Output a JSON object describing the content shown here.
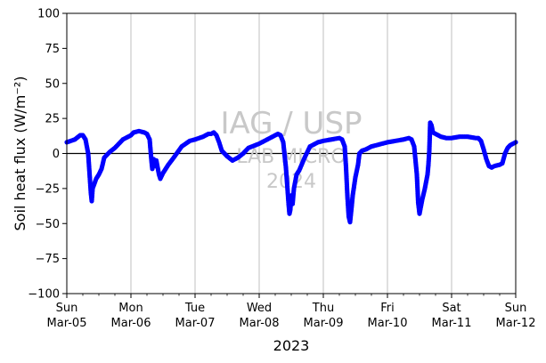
{
  "chart_data": {
    "type": "scatter",
    "ylabel": "Soil heat flux (W/m⁻²)",
    "xlabel": "2023",
    "ylim": [
      -100,
      100
    ],
    "xlim": [
      "2023-03-05",
      "2023-03-12"
    ],
    "y_ticks": [
      100,
      75,
      50,
      25,
      0,
      -25,
      -50,
      -75,
      -100
    ],
    "y_tick_labels": [
      "100",
      "75",
      "50",
      "25",
      "0",
      "−25",
      "−50",
      "−75",
      "−100"
    ],
    "x_ticks": [
      {
        "day": "Sun",
        "date": "Mar-05"
      },
      {
        "day": "Mon",
        "date": "Mar-06"
      },
      {
        "day": "Tue",
        "date": "Mar-07"
      },
      {
        "day": "Wed",
        "date": "Mar-08"
      },
      {
        "day": "Thu",
        "date": "Mar-09"
      },
      {
        "day": "Fri",
        "date": "Mar-10"
      },
      {
        "day": "Sat",
        "date": "Mar-11"
      },
      {
        "day": "Sun",
        "date": "Mar-12"
      }
    ],
    "grid": "vertical at major x ticks",
    "reference_line_y": 0,
    "series": [
      {
        "color": "#0000ff",
        "marker": "dot",
        "points": [
          [
            "2023-03-05 00:00",
            8
          ],
          [
            "2023-03-05 03:00",
            10
          ],
          [
            "2023-03-05 05:00",
            13
          ],
          [
            "2023-03-05 06:00",
            13
          ],
          [
            "2023-03-05 07:00",
            10
          ],
          [
            "2023-03-05 08:00",
            0
          ],
          [
            "2023-03-05 08:30",
            -14
          ],
          [
            "2023-03-05 09:00",
            -28
          ],
          [
            "2023-03-05 09:20",
            -34
          ],
          [
            "2023-03-05 09:40",
            -25
          ],
          [
            "2023-03-05 11:00",
            -18
          ],
          [
            "2023-03-05 12:00",
            -15
          ],
          [
            "2023-03-05 13:00",
            -11
          ],
          [
            "2023-03-05 14:00",
            -3
          ],
          [
            "2023-03-05 16:00",
            1
          ],
          [
            "2023-03-05 18:00",
            4
          ],
          [
            "2023-03-05 21:00",
            10
          ],
          [
            "2023-03-06 00:00",
            13
          ],
          [
            "2023-03-06 01:00",
            15
          ],
          [
            "2023-03-06 03:00",
            16
          ],
          [
            "2023-03-06 05:00",
            15
          ],
          [
            "2023-03-06 06:00",
            14
          ],
          [
            "2023-03-06 07:00",
            10
          ],
          [
            "2023-03-06 07:40",
            -5
          ],
          [
            "2023-03-06 08:00",
            -11
          ],
          [
            "2023-03-06 08:30",
            -4
          ],
          [
            "2023-03-06 09:00",
            -9
          ],
          [
            "2023-03-06 09:30",
            -5
          ],
          [
            "2023-03-06 10:30",
            -15
          ],
          [
            "2023-03-06 11:00",
            -18
          ],
          [
            "2023-03-06 12:00",
            -14
          ],
          [
            "2023-03-06 13:00",
            -11
          ],
          [
            "2023-03-06 14:00",
            -8
          ],
          [
            "2023-03-06 16:00",
            -3
          ],
          [
            "2023-03-06 19:00",
            5
          ],
          [
            "2023-03-06 22:00",
            9
          ],
          [
            "2023-03-07 00:00",
            10
          ],
          [
            "2023-03-07 03:00",
            12
          ],
          [
            "2023-03-07 05:00",
            14
          ],
          [
            "2023-03-07 06:00",
            14
          ],
          [
            "2023-03-07 07:00",
            15
          ],
          [
            "2023-03-07 08:00",
            13
          ],
          [
            "2023-03-07 09:00",
            8
          ],
          [
            "2023-03-07 10:00",
            2
          ],
          [
            "2023-03-07 12:00",
            -2
          ],
          [
            "2023-03-07 14:00",
            -5
          ],
          [
            "2023-03-07 16:00",
            -3
          ],
          [
            "2023-03-07 18:00",
            0
          ],
          [
            "2023-03-07 20:00",
            4
          ],
          [
            "2023-03-08 00:00",
            7
          ],
          [
            "2023-03-08 02:00",
            9
          ],
          [
            "2023-03-08 05:00",
            12
          ],
          [
            "2023-03-08 07:00",
            14
          ],
          [
            "2023-03-08 08:00",
            13
          ],
          [
            "2023-03-08 09:00",
            8
          ],
          [
            "2023-03-08 10:00",
            -10
          ],
          [
            "2023-03-08 11:00",
            -36
          ],
          [
            "2023-03-08 11:20",
            -43
          ],
          [
            "2023-03-08 11:40",
            -40
          ],
          [
            "2023-03-08 12:00",
            -30
          ],
          [
            "2023-03-08 12:30",
            -36
          ],
          [
            "2023-03-08 13:00",
            -25
          ],
          [
            "2023-03-08 14:00",
            -15
          ],
          [
            "2023-03-08 15:00",
            -12
          ],
          [
            "2023-03-08 17:00",
            -3
          ],
          [
            "2023-03-08 19:00",
            5
          ],
          [
            "2023-03-08 22:00",
            8
          ],
          [
            "2023-03-09 00:00",
            9
          ],
          [
            "2023-03-09 03:00",
            10
          ],
          [
            "2023-03-09 06:00",
            11
          ],
          [
            "2023-03-09 07:00",
            10
          ],
          [
            "2023-03-09 08:00",
            5
          ],
          [
            "2023-03-09 08:30",
            -10
          ],
          [
            "2023-03-09 09:00",
            -30
          ],
          [
            "2023-03-09 09:30",
            -45
          ],
          [
            "2023-03-09 10:00",
            -49
          ],
          [
            "2023-03-09 10:30",
            -40
          ],
          [
            "2023-03-09 11:00",
            -30
          ],
          [
            "2023-03-09 12:00",
            -17
          ],
          [
            "2023-03-09 13:00",
            -8
          ],
          [
            "2023-03-09 13:30",
            0
          ],
          [
            "2023-03-09 14:30",
            2
          ],
          [
            "2023-03-09 16:00",
            3
          ],
          [
            "2023-03-09 18:00",
            5
          ],
          [
            "2023-03-09 20:00",
            6
          ],
          [
            "2023-03-10 00:00",
            8
          ],
          [
            "2023-03-10 03:00",
            9
          ],
          [
            "2023-03-10 06:00",
            10
          ],
          [
            "2023-03-10 08:00",
            11
          ],
          [
            "2023-03-10 09:00",
            10
          ],
          [
            "2023-03-10 10:00",
            5
          ],
          [
            "2023-03-10 11:00",
            -15
          ],
          [
            "2023-03-10 11:30",
            -35
          ],
          [
            "2023-03-10 12:00",
            -43
          ],
          [
            "2023-03-10 13:00",
            -33
          ],
          [
            "2023-03-10 14:00",
            -25
          ],
          [
            "2023-03-10 15:00",
            -15
          ],
          [
            "2023-03-10 15:20",
            -8
          ],
          [
            "2023-03-10 15:40",
            2
          ],
          [
            "2023-03-10 16:00",
            22
          ],
          [
            "2023-03-10 16:30",
            20
          ],
          [
            "2023-03-10 17:00",
            15
          ],
          [
            "2023-03-10 18:00",
            14
          ],
          [
            "2023-03-10 20:00",
            12
          ],
          [
            "2023-03-10 22:00",
            11
          ],
          [
            "2023-03-11 00:00",
            11
          ],
          [
            "2023-03-11 03:00",
            12
          ],
          [
            "2023-03-11 06:00",
            12
          ],
          [
            "2023-03-11 09:00",
            11
          ],
          [
            "2023-03-11 10:00",
            11
          ],
          [
            "2023-03-11 11:00",
            9
          ],
          [
            "2023-03-11 12:00",
            3
          ],
          [
            "2023-03-11 13:00",
            -4
          ],
          [
            "2023-03-11 14:00",
            -9
          ],
          [
            "2023-03-11 15:00",
            -10
          ],
          [
            "2023-03-11 16:00",
            -9
          ],
          [
            "2023-03-11 18:00",
            -8
          ],
          [
            "2023-03-11 19:00",
            -7
          ],
          [
            "2023-03-11 20:00",
            0
          ],
          [
            "2023-03-11 21:00",
            4
          ],
          [
            "2023-03-11 22:00",
            6
          ],
          [
            "2023-03-12 00:00",
            8
          ]
        ]
      }
    ],
    "watermark": [
      "IAG / USP",
      "LAB MICRO",
      "2024"
    ]
  }
}
